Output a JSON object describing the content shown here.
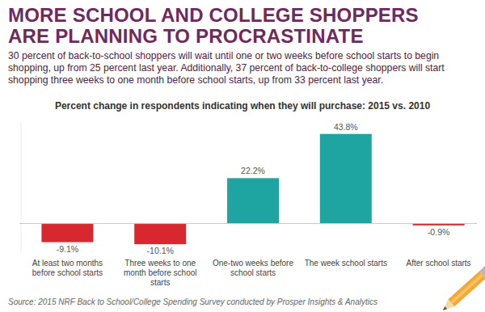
{
  "chart_data": {
    "type": "bar",
    "title": "MORE SCHOOL AND COLLEGE SHOPPERS ARE PLANNING TO PROCRASTINATE",
    "subtitle": "30 percent of back-to-school shoppers will wait until one or two weeks before school starts to begin shopping, up from 25 percent last year. Additionally, 37 percent of back-to-college shoppers will start shopping three weeks to one month before school starts, up from 33 percent last year.",
    "plot_title": "Percent change in respondents indicating when they will purchase: 2015 vs. 2010",
    "source": "Source: 2015 NRF Back to School/College Spending Survey conducted by Prosper Insights & Analytics",
    "categories": [
      "At least two months before school starts",
      "Three weeks to one month before school starts",
      "One-two weeks before school starts",
      "The week school starts",
      "After school starts"
    ],
    "values": [
      -9.1,
      -10.1,
      22.2,
      43.8,
      -0.9
    ],
    "value_labels": [
      "-9.1%",
      "-10.1%",
      "22.2%",
      "43.8%",
      "-0.9%"
    ],
    "colors": [
      "#d7282f",
      "#d7282f",
      "#1fa5a1",
      "#1fa5a1",
      "#d7282f"
    ],
    "ylim": [
      -14,
      50
    ],
    "grid": false,
    "data_labels": true,
    "tick_labels": "x"
  }
}
